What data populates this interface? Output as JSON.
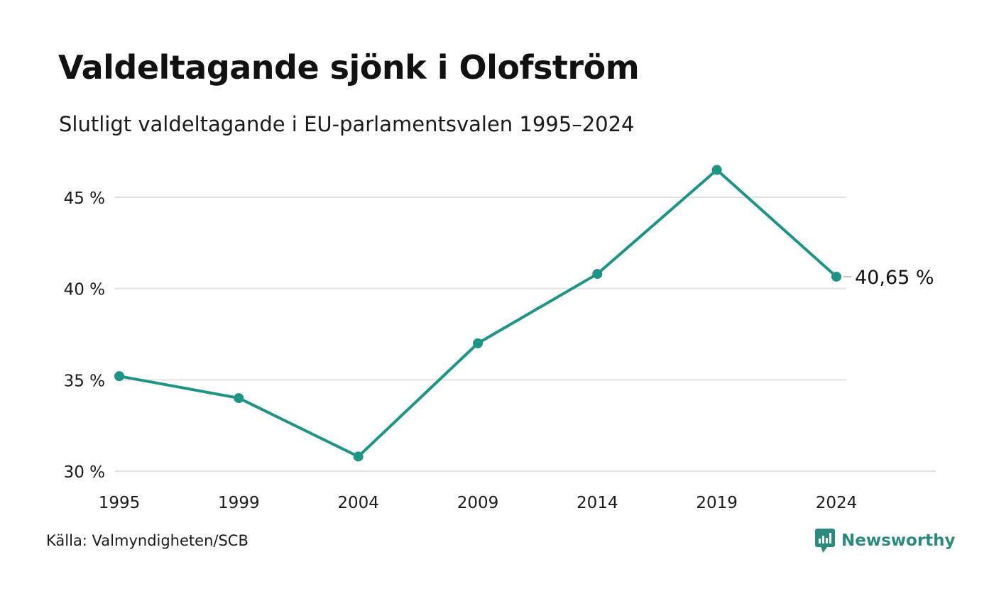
{
  "chart_data": {
    "type": "line",
    "title": "Valdeltagande sjönk i Olofström",
    "subtitle": "Slutligt valdeltagande i EU-parlamentsvalen 1995–2024",
    "x": [
      "1995",
      "1999",
      "2004",
      "2009",
      "2014",
      "2019",
      "2024"
    ],
    "series": [
      {
        "values": [
          35.2,
          34.0,
          30.8,
          37.0,
          40.8,
          46.5,
          40.65
        ],
        "color": "#1e9484"
      }
    ],
    "yticks": [
      30,
      35,
      40,
      45
    ],
    "ytick_labels": [
      "30 %",
      "35 %",
      "40 %",
      "45 %"
    ],
    "ylim": [
      30,
      47
    ],
    "grid": true,
    "end_label": "40,65 %",
    "xlabel": "",
    "ylabel": ""
  },
  "source": "Källa: Valmyndigheten/SCB",
  "brand": {
    "name": "Newsworthy",
    "icon": "newsworthy-logo-icon",
    "color": "#2b8a7e"
  }
}
